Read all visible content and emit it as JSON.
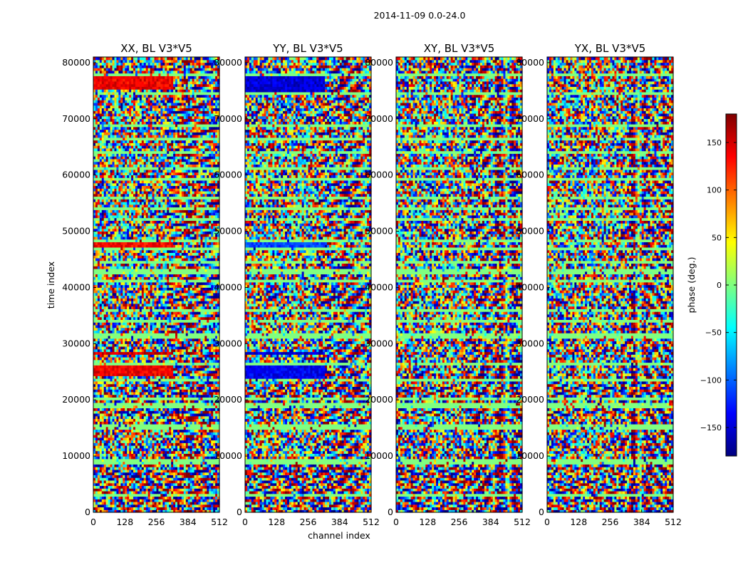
{
  "chart_data": {
    "type": "heatmap",
    "suptitle": "2014-11-09 0.0-24.0",
    "xlabel": "channel index",
    "ylabel": "time index",
    "xlim": [
      0,
      512
    ],
    "ylim": [
      0,
      81000
    ],
    "xticks": [
      0,
      128,
      256,
      384,
      512
    ],
    "xtick_labels": [
      "0",
      "128",
      "256",
      "384",
      "512"
    ],
    "yticks": [
      0,
      10000,
      20000,
      30000,
      40000,
      50000,
      60000,
      70000,
      80000
    ],
    "ytick_labels": [
      "0",
      "10000",
      "20000",
      "30000",
      "40000",
      "50000",
      "60000",
      "70000",
      "80000"
    ],
    "panels": [
      {
        "title": "XX, BL V3*V5",
        "pol": "XX"
      },
      {
        "title": "YY, BL V3*V5",
        "pol": "YY"
      },
      {
        "title": "XY, BL V3*V5",
        "pol": "XY"
      },
      {
        "title": "YX, BL V3*V5",
        "pol": "YX"
      }
    ],
    "colorbar": {
      "label": "phase (deg.)",
      "range": [
        -180,
        180
      ],
      "ticks": [
        -150,
        -100,
        -50,
        0,
        50,
        100,
        150
      ],
      "tick_labels": [
        "−150",
        "−100",
        "−50",
        "0",
        "50",
        "100",
        "150"
      ],
      "colormap": "jet",
      "colors": [
        "#00007f",
        "#0000ff",
        "#007fff",
        "#00ffff",
        "#7fff7f",
        "#ffff00",
        "#ff7f00",
        "#ff0000",
        "#7f0000"
      ]
    },
    "flagged_time_ranges": [
      [
        2800,
        3100
      ],
      [
        8800,
        9600
      ],
      [
        11200,
        11600
      ],
      [
        14900,
        15500
      ],
      [
        18800,
        19400
      ],
      [
        20200,
        20700
      ],
      [
        23300,
        23800
      ],
      [
        26200,
        26800
      ],
      [
        28900,
        29300
      ],
      [
        31200,
        31700
      ],
      [
        33800,
        34300
      ],
      [
        35800,
        36400
      ],
      [
        41000,
        41500
      ],
      [
        42200,
        43300
      ],
      [
        44500,
        44900
      ],
      [
        46500,
        47000
      ],
      [
        48200,
        48600
      ],
      [
        51800,
        52300
      ],
      [
        53800,
        54200
      ],
      [
        55800,
        56300
      ],
      [
        59000,
        59400
      ],
      [
        60900,
        61300
      ],
      [
        64000,
        64400
      ],
      [
        66400,
        66900
      ],
      [
        68500,
        69000
      ],
      [
        74200,
        74600
      ],
      [
        77800,
        78200
      ]
    ],
    "strong_phase_bands": [
      {
        "panel": "XX",
        "range": [
          24200,
          26000
        ],
        "channels": [
          0,
          320
        ],
        "phase": 140
      },
      {
        "panel": "XX",
        "range": [
          28200,
          28800
        ],
        "channels": [
          0,
          320
        ],
        "phase": 150
      },
      {
        "panel": "XX",
        "range": [
          47200,
          48200
        ],
        "channels": [
          0,
          320
        ],
        "phase": 135
      },
      {
        "panel": "XX",
        "range": [
          53800,
          54400
        ],
        "channels": [
          0,
          320
        ],
        "phase": 120
      },
      {
        "panel": "XX",
        "range": [
          75200,
          78000
        ],
        "channels": [
          0,
          320
        ],
        "phase": 140
      },
      {
        "panel": "YY",
        "range": [
          23800,
          26000
        ],
        "channels": [
          0,
          320
        ],
        "phase": -140
      },
      {
        "panel": "YY",
        "range": [
          28200,
          28800
        ],
        "channels": [
          0,
          320
        ],
        "phase": -150
      },
      {
        "panel": "YY",
        "range": [
          47000,
          48200
        ],
        "channels": [
          0,
          320
        ],
        "phase": -110
      },
      {
        "panel": "YY",
        "range": [
          75000,
          78000
        ],
        "channels": [
          0,
          320
        ],
        "phase": -150
      }
    ]
  }
}
